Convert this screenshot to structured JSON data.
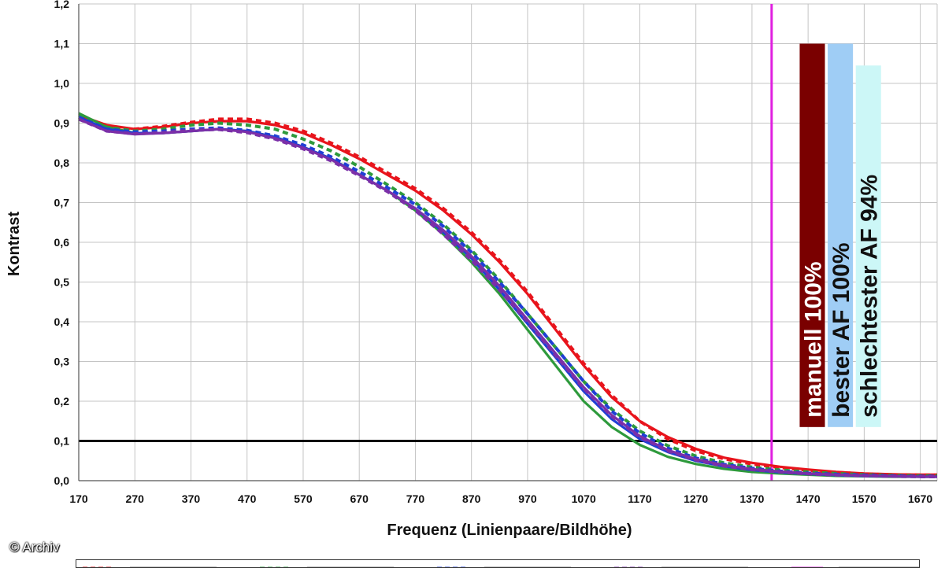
{
  "chart_data": {
    "type": "line",
    "title": "",
    "xlabel": "Frequenz (Linienpaare/Bildhöhe)",
    "ylabel": "Kontrast",
    "xlim": [
      170,
      1700
    ],
    "ylim": [
      0,
      1.2
    ],
    "x_ticks": [
      "170",
      "270",
      "370",
      "470",
      "570",
      "670",
      "770",
      "870",
      "970",
      "1070",
      "1170",
      "1270",
      "1370",
      "1470",
      "1570",
      "1670"
    ],
    "y_ticks": [
      "0,0",
      "0,1",
      "0,2",
      "0,3",
      "0,4",
      "0,5",
      "0,6",
      "0,7",
      "0,8",
      "0,9",
      "1,0",
      "1,1",
      "1,2"
    ],
    "grid": true,
    "series": [
      {
        "color": "#e8141c",
        "style": "solid",
        "x": [
          170,
          220,
          270,
          320,
          370,
          420,
          470,
          520,
          570,
          620,
          670,
          720,
          770,
          820,
          870,
          920,
          970,
          1020,
          1070,
          1120,
          1170,
          1220,
          1270,
          1320,
          1370,
          1420,
          1470,
          1520,
          1570,
          1620,
          1670,
          1700
        ],
        "y": [
          0.92,
          0.895,
          0.885,
          0.89,
          0.9,
          0.905,
          0.905,
          0.895,
          0.875,
          0.845,
          0.81,
          0.77,
          0.73,
          0.68,
          0.62,
          0.55,
          0.47,
          0.38,
          0.29,
          0.21,
          0.15,
          0.11,
          0.08,
          0.058,
          0.045,
          0.035,
          0.028,
          0.022,
          0.018,
          0.016,
          0.015,
          0.015
        ]
      },
      {
        "color": "#e8141c",
        "style": "dashed",
        "x": [
          170,
          220,
          270,
          320,
          370,
          420,
          470,
          520,
          570,
          620,
          670,
          720,
          770,
          820,
          870,
          920,
          970,
          1020,
          1070,
          1120,
          1170,
          1220,
          1270,
          1320,
          1370,
          1420,
          1470,
          1520,
          1570,
          1620,
          1670,
          1700
        ],
        "y": [
          0.915,
          0.89,
          0.885,
          0.892,
          0.902,
          0.91,
          0.91,
          0.9,
          0.88,
          0.85,
          0.815,
          0.775,
          0.735,
          0.685,
          0.625,
          0.555,
          0.475,
          0.385,
          0.295,
          0.215,
          0.15,
          0.105,
          0.075,
          0.055,
          0.042,
          0.033,
          0.026,
          0.021,
          0.017,
          0.015,
          0.014,
          0.014
        ]
      },
      {
        "color": "#2e9a3c",
        "style": "solid",
        "x": [
          170,
          220,
          270,
          320,
          370,
          420,
          470,
          520,
          570,
          620,
          670,
          720,
          770,
          820,
          870,
          920,
          970,
          1020,
          1070,
          1120,
          1170,
          1220,
          1270,
          1320,
          1370,
          1420,
          1470,
          1520,
          1570,
          1620,
          1670,
          1700
        ],
        "y": [
          0.925,
          0.89,
          0.875,
          0.875,
          0.88,
          0.885,
          0.88,
          0.865,
          0.84,
          0.81,
          0.77,
          0.73,
          0.68,
          0.62,
          0.55,
          0.47,
          0.38,
          0.29,
          0.2,
          0.135,
          0.09,
          0.06,
          0.042,
          0.03,
          0.022,
          0.018,
          0.015,
          0.012,
          0.011,
          0.01,
          0.01,
          0.01
        ]
      },
      {
        "color": "#2e9a3c",
        "style": "dashed",
        "x": [
          170,
          220,
          270,
          320,
          370,
          420,
          470,
          520,
          570,
          620,
          670,
          720,
          770,
          820,
          870,
          920,
          970,
          1020,
          1070,
          1120,
          1170,
          1220,
          1270,
          1320,
          1370,
          1420,
          1470,
          1520,
          1570,
          1620,
          1670,
          1700
        ],
        "y": [
          0.92,
          0.89,
          0.88,
          0.885,
          0.895,
          0.9,
          0.895,
          0.885,
          0.86,
          0.83,
          0.79,
          0.745,
          0.7,
          0.645,
          0.58,
          0.505,
          0.42,
          0.335,
          0.25,
          0.18,
          0.125,
          0.088,
          0.062,
          0.045,
          0.034,
          0.027,
          0.022,
          0.018,
          0.015,
          0.013,
          0.012,
          0.012
        ]
      },
      {
        "color": "#1f3fd6",
        "style": "solid",
        "x": [
          170,
          220,
          270,
          320,
          370,
          420,
          470,
          520,
          570,
          620,
          670,
          720,
          770,
          820,
          870,
          920,
          970,
          1020,
          1070,
          1120,
          1170,
          1220,
          1270,
          1320,
          1370,
          1420,
          1470,
          1520,
          1570,
          1620,
          1670,
          1700
        ],
        "y": [
          0.915,
          0.885,
          0.875,
          0.875,
          0.88,
          0.885,
          0.88,
          0.865,
          0.84,
          0.81,
          0.77,
          0.73,
          0.685,
          0.625,
          0.56,
          0.48,
          0.395,
          0.31,
          0.225,
          0.155,
          0.105,
          0.072,
          0.05,
          0.036,
          0.027,
          0.021,
          0.017,
          0.014,
          0.012,
          0.011,
          0.01,
          0.01
        ]
      },
      {
        "color": "#1f3fd6",
        "style": "dashed",
        "x": [
          170,
          220,
          270,
          320,
          370,
          420,
          470,
          520,
          570,
          620,
          670,
          720,
          770,
          820,
          870,
          920,
          970,
          1020,
          1070,
          1120,
          1170,
          1220,
          1270,
          1320,
          1370,
          1420,
          1470,
          1520,
          1570,
          1620,
          1670,
          1700
        ],
        "y": [
          0.915,
          0.885,
          0.878,
          0.88,
          0.885,
          0.888,
          0.882,
          0.868,
          0.845,
          0.815,
          0.778,
          0.738,
          0.695,
          0.64,
          0.575,
          0.5,
          0.42,
          0.335,
          0.25,
          0.175,
          0.12,
          0.082,
          0.057,
          0.041,
          0.031,
          0.024,
          0.019,
          0.016,
          0.014,
          0.012,
          0.011,
          0.011
        ]
      },
      {
        "color": "#7b2fa8",
        "style": "solid",
        "x": [
          170,
          220,
          270,
          320,
          370,
          420,
          470,
          520,
          570,
          620,
          670,
          720,
          770,
          820,
          870,
          920,
          970,
          1020,
          1070,
          1120,
          1170,
          1220,
          1270,
          1320,
          1370,
          1420,
          1470,
          1520,
          1570,
          1620,
          1670,
          1700
        ],
        "y": [
          0.91,
          0.88,
          0.872,
          0.875,
          0.88,
          0.885,
          0.878,
          0.862,
          0.838,
          0.808,
          0.77,
          0.73,
          0.685,
          0.63,
          0.565,
          0.49,
          0.405,
          0.32,
          0.235,
          0.165,
          0.112,
          0.077,
          0.054,
          0.039,
          0.029,
          0.023,
          0.018,
          0.015,
          0.013,
          0.011,
          0.01,
          0.01
        ]
      },
      {
        "color": "#7b2fa8",
        "style": "dashed",
        "x": [
          170,
          220,
          270,
          320,
          370,
          420,
          470,
          520,
          570,
          620,
          670,
          720,
          770,
          820,
          870,
          920,
          970,
          1020,
          1070,
          1120,
          1170,
          1220,
          1270,
          1320,
          1370,
          1420,
          1470,
          1520,
          1570,
          1620,
          1670,
          1700
        ],
        "y": [
          0.91,
          0.88,
          0.873,
          0.876,
          0.882,
          0.884,
          0.876,
          0.86,
          0.835,
          0.805,
          0.768,
          0.728,
          0.68,
          0.62,
          0.555,
          0.48,
          0.4,
          0.315,
          0.232,
          0.162,
          0.11,
          0.075,
          0.052,
          0.037,
          0.028,
          0.022,
          0.017,
          0.014,
          0.012,
          0.011,
          0.01,
          0.01
        ]
      }
    ],
    "reference_lines": [
      {
        "orientation": "horizontal",
        "value": 0.1,
        "color": "#000000"
      },
      {
        "orientation": "vertical",
        "value": 1405,
        "color": "#e020e0"
      }
    ],
    "bars": [
      {
        "label": "manuell 100%",
        "value": 1.1,
        "x_from": 1455,
        "x_to": 1500,
        "color": "#7a0000",
        "text_color": "#ffffff"
      },
      {
        "label": "bester AF 100%",
        "value": 1.1,
        "x_from": 1505,
        "x_to": 1550,
        "color": "#9fcdf5",
        "text_color": "#111111"
      },
      {
        "label": "schlechtester AF 94%",
        "value": 1.045,
        "x_from": 1555,
        "x_to": 1600,
        "color": "#ccf7f7",
        "text_color": "#111111"
      }
    ]
  },
  "credit": "© Archiv"
}
